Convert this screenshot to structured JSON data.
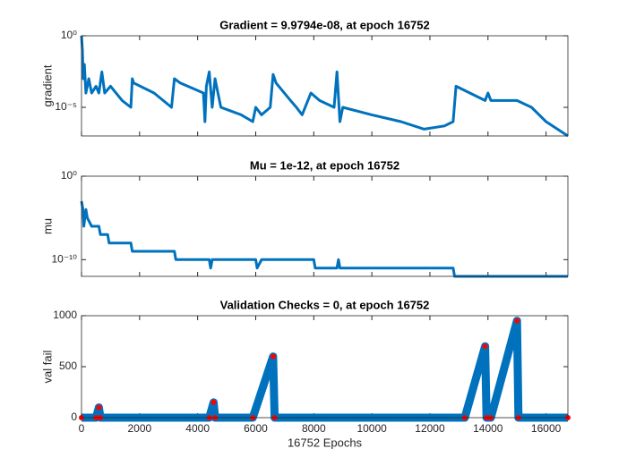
{
  "chart_data": [
    {
      "type": "line",
      "title": "Gradient = 9.9794e-08, at epoch 16752",
      "y_label": "gradient",
      "yscale": "log",
      "color": "#0072bd",
      "xlim": [
        0,
        16752
      ],
      "xticks": [
        0,
        2000,
        4000,
        6000,
        8000,
        10000,
        12000,
        14000,
        16000
      ],
      "ylim": [
        1e-07,
        1
      ],
      "yticks": [
        {
          "value": 1,
          "label": "10⁰"
        },
        {
          "value": 1e-05,
          "label": "10⁻⁵"
        }
      ],
      "x": [
        0,
        30,
        60,
        100,
        150,
        250,
        350,
        500,
        600,
        700,
        800,
        1000,
        1400,
        1700,
        1750,
        1800,
        2500,
        3100,
        3200,
        3400,
        4200,
        4250,
        4300,
        4400,
        4500,
        4600,
        4700,
        4800,
        5500,
        5900,
        6000,
        6200,
        6500,
        6600,
        6700,
        7200,
        7400,
        7600,
        7900,
        8200,
        8700,
        8800,
        8900,
        9000,
        10000,
        11000,
        11800,
        12500,
        12800,
        12900,
        13900,
        14000,
        14100,
        15000,
        15500,
        16000,
        16752
      ],
      "values": [
        1,
        0.1,
        0.001,
        0.01,
        0.0001,
        0.001,
        0.0001,
        0.0003,
        0.0001,
        0.003,
        0.0001,
        0.0003,
        3e-05,
        1e-05,
        0.001,
        0.0005,
        0.0001,
        1e-05,
        0.001,
        0.0005,
        0.0001,
        1e-06,
        0.0003,
        0.003,
        1e-05,
        0.001,
        0.0001,
        1e-05,
        3e-06,
        1e-06,
        1e-05,
        3e-06,
        1e-05,
        0.002,
        0.0005,
        3e-05,
        1e-05,
        3e-06,
        0.0001,
        3e-05,
        1e-05,
        0.003,
        1e-06,
        1e-05,
        3e-06,
        1e-06,
        3e-07,
        5e-07,
        1e-06,
        0.0003,
        3e-05,
        0.0001,
        3e-05,
        3e-05,
        1e-05,
        1e-06,
        9.9794e-08
      ]
    },
    {
      "type": "line",
      "title": "Mu = 1e-12, at epoch 16752",
      "y_label": "mu",
      "yscale": "log",
      "color": "#0072bd",
      "xlim": [
        0,
        16752
      ],
      "xticks": [
        0,
        2000,
        4000,
        6000,
        8000,
        10000,
        12000,
        14000,
        16000
      ],
      "ylim": [
        1e-12,
        1
      ],
      "yticks": [
        {
          "value": 1,
          "label": "10⁰"
        },
        {
          "value": 1e-10,
          "label": "10⁻¹⁰"
        }
      ],
      "x": [
        0,
        50,
        80,
        150,
        200,
        350,
        600,
        650,
        900,
        950,
        1700,
        1750,
        3200,
        3250,
        4400,
        4450,
        4500,
        6000,
        6050,
        6200,
        8000,
        8050,
        8800,
        8850,
        8900,
        12800,
        12850,
        16752
      ],
      "values": [
        0.001,
        0.0001,
        1e-06,
        0.0001,
        1e-05,
        1e-06,
        1e-06,
        1e-07,
        1e-07,
        1e-08,
        1e-08,
        1e-09,
        1e-09,
        1e-10,
        1e-10,
        1e-11,
        1e-10,
        1e-10,
        1e-11,
        1e-10,
        1e-10,
        1e-11,
        1e-11,
        1e-10,
        1e-11,
        1e-11,
        1e-12,
        1e-12
      ]
    },
    {
      "type": "line",
      "title": "Validation Checks = 0, at epoch 16752",
      "y_label": "val fail",
      "x_label": "16752 Epochs",
      "color": "#0072bd",
      "marker_color": "#ff0000",
      "xlim": [
        0,
        16752
      ],
      "xticks": [
        0,
        2000,
        4000,
        6000,
        8000,
        10000,
        12000,
        14000,
        16000
      ],
      "ylim": [
        0,
        1000
      ],
      "yticks": [
        0,
        500,
        1000
      ],
      "x": [
        0,
        500,
        600,
        650,
        4400,
        4550,
        4600,
        5900,
        6600,
        6650,
        13200,
        13900,
        13950,
        14100,
        15000,
        15050,
        16752
      ],
      "values": [
        0,
        0,
        100,
        0,
        0,
        150,
        0,
        0,
        600,
        0,
        0,
        700,
        0,
        0,
        950,
        0,
        0
      ]
    }
  ]
}
